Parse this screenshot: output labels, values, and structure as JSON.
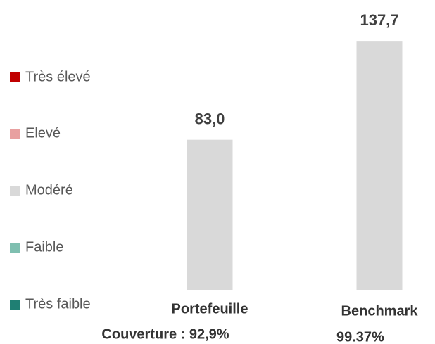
{
  "chart_data": {
    "type": "bar",
    "categories": [
      "Portefeuille",
      "Benchmark"
    ],
    "values": [
      83.0,
      137.7
    ],
    "value_labels": [
      "83,0",
      "137,7"
    ],
    "category_notes": [
      "Couverture : 92,9%",
      "99.37%"
    ],
    "color": "#d9d9d9",
    "legend": [
      {
        "name": "Très élevé",
        "color": "#c00000"
      },
      {
        "name": "Elevé",
        "color": "#e8a0a0"
      },
      {
        "name": "Modéré",
        "color": "#d9d9d9"
      },
      {
        "name": "Faible",
        "color": "#7fbfb0"
      },
      {
        "name": "Très faible",
        "color": "#1f7f73"
      }
    ]
  }
}
